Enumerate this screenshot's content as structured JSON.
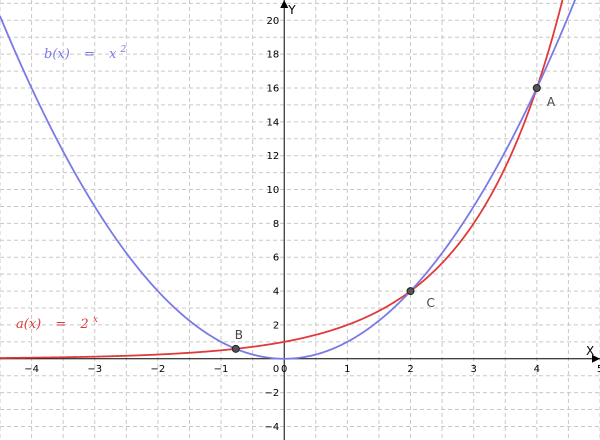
{
  "chart_data": {
    "type": "line",
    "xlabel": "X",
    "ylabel": "Y",
    "xlim": [
      -4.5,
      5.0
    ],
    "ylim": [
      -4.8,
      21.2
    ],
    "x_ticks": [
      -4,
      -3,
      -2,
      -1,
      0,
      1,
      2,
      3,
      4,
      5
    ],
    "y_ticks": [
      -4,
      -2,
      2,
      4,
      6,
      8,
      10,
      12,
      14,
      16,
      18,
      20
    ],
    "grid": true,
    "series": [
      {
        "name": "a(x) = 2^x",
        "formula": "2^x",
        "color": "#e03a3a",
        "label": {
          "lhs": "a(x)",
          "eq": "=",
          "base": "2",
          "exp": "x"
        }
      },
      {
        "name": "b(x) = x^2",
        "formula": "x^2",
        "color": "#7a7ae6",
        "label": {
          "lhs": "b(x)",
          "eq": "=",
          "base": "x",
          "exp": "2"
        }
      }
    ],
    "points": [
      {
        "label": "A",
        "x": 4,
        "y": 16
      },
      {
        "label": "B",
        "x": -0.767,
        "y": 0.588
      },
      {
        "label": "C",
        "x": 2,
        "y": 4
      }
    ],
    "origin_label": "0"
  }
}
